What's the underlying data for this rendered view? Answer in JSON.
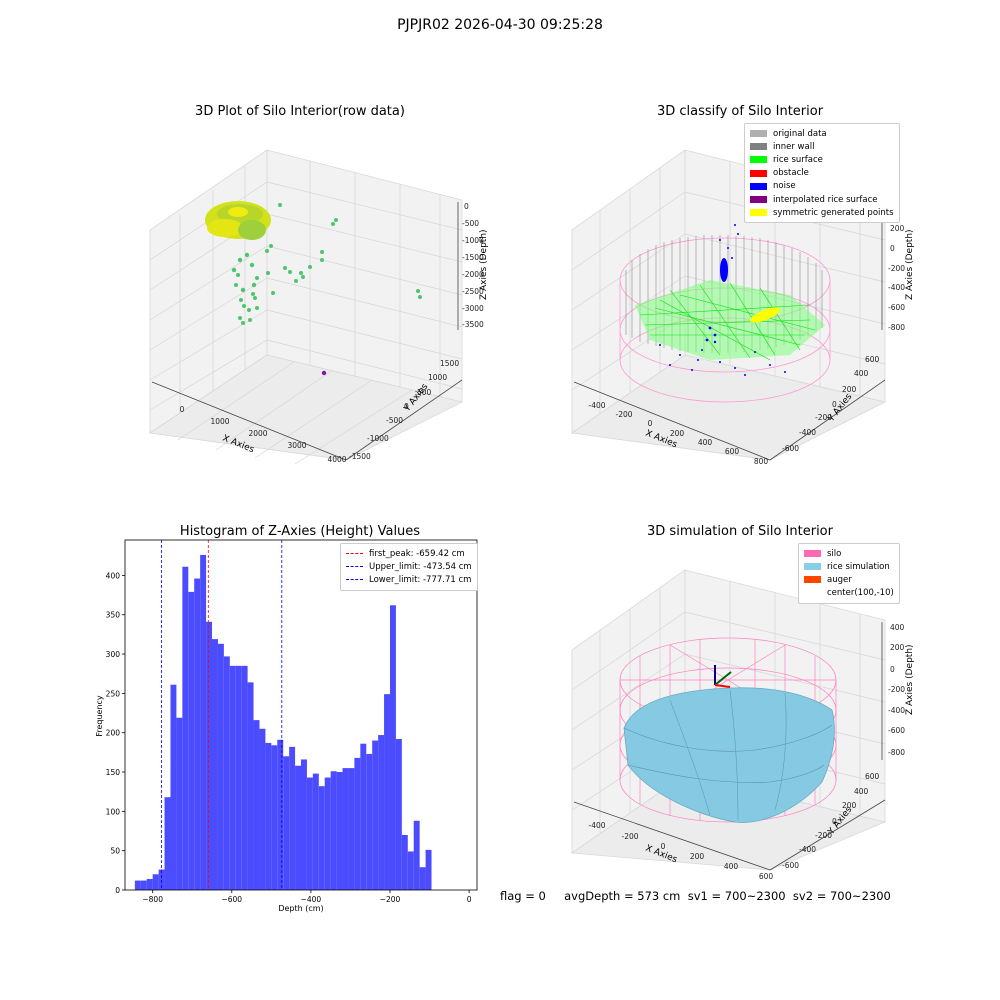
{
  "figure": {
    "suptitle": "PJPJR02 2026-04-30 09:25:28",
    "footer": "flag = 0     avgDepth = 573 cm  sv1 = 700~2300  sv2 = 700~2300"
  },
  "chart_data": [
    {
      "type": "scatter",
      "title": "3D Plot of Silo Interior(row data)",
      "xlabel": "X Axies",
      "ylabel": "Y Axies",
      "zlabel": "Z Axies (Depth)",
      "x_ticks": [
        "0",
        "1000",
        "2000",
        "3000",
        "4000"
      ],
      "y_ticks": [
        "-1500",
        "-1000",
        "-500",
        "0",
        "500",
        "1000",
        "1500"
      ],
      "z_ticks": [
        "0",
        "-500",
        "-1000",
        "-1500",
        "-2000",
        "-2500",
        "-3000",
        "-3500"
      ],
      "colors": {
        "cluster": "#c8e01e",
        "outliers": "#4cc66c",
        "far_point": "#7a1fa2"
      }
    },
    {
      "type": "scatter",
      "title": "3D classify of Silo Interior",
      "xlabel": "X Axies",
      "ylabel": "Y Axies",
      "zlabel": "Z Axies (Depth)",
      "x_ticks": [
        "-400",
        "-200",
        "0",
        "200",
        "400",
        "600",
        "800"
      ],
      "y_ticks": [
        "-600",
        "-400",
        "-200",
        "0",
        "200",
        "400",
        "600"
      ],
      "z_ticks": [
        "-800",
        "-600",
        "-400",
        "-200",
        "0",
        "200"
      ],
      "legend": [
        {
          "label": "original data",
          "color": "#b0b0b0"
        },
        {
          "label": "inner wall",
          "color": "#808080"
        },
        {
          "label": "rice surface",
          "color": "#00ff00"
        },
        {
          "label": "obstacle",
          "color": "#ff0000"
        },
        {
          "label": "noise",
          "color": "#0000ff"
        },
        {
          "label": "interpolated rice surface",
          "color": "#800080"
        },
        {
          "label": "symmetric generated points",
          "color": "#ffff00"
        }
      ]
    },
    {
      "type": "bar",
      "title": "Histogram of Z-Axies (Height) Values",
      "xlabel": "Depth (cm)",
      "ylabel": "Frequency",
      "xlim": [
        -870,
        20
      ],
      "ylim": [
        0,
        445
      ],
      "x_ticks": [
        -800,
        -600,
        -400,
        -200,
        0
      ],
      "y_ticks": [
        0,
        50,
        100,
        150,
        200,
        250,
        300,
        350,
        400
      ],
      "bar_color": "#4c4cff",
      "bins": [
        {
          "x0": -845,
          "x1": -830,
          "v": 12
        },
        {
          "x0": -830,
          "x1": -815,
          "v": 12
        },
        {
          "x0": -815,
          "x1": -800,
          "v": 14
        },
        {
          "x0": -800,
          "x1": -785,
          "v": 20
        },
        {
          "x0": -785,
          "x1": -770,
          "v": 26
        },
        {
          "x0": -770,
          "x1": -755,
          "v": 118
        },
        {
          "x0": -755,
          "x1": -740,
          "v": 261
        },
        {
          "x0": -740,
          "x1": -725,
          "v": 219
        },
        {
          "x0": -725,
          "x1": -710,
          "v": 411
        },
        {
          "x0": -710,
          "x1": -695,
          "v": 379
        },
        {
          "x0": -695,
          "x1": -680,
          "v": 396
        },
        {
          "x0": -680,
          "x1": -665,
          "v": 426
        },
        {
          "x0": -665,
          "x1": -650,
          "v": 341
        },
        {
          "x0": -650,
          "x1": -635,
          "v": 319
        },
        {
          "x0": -635,
          "x1": -620,
          "v": 313
        },
        {
          "x0": -620,
          "x1": -605,
          "v": 297
        },
        {
          "x0": -605,
          "x1": -590,
          "v": 285
        },
        {
          "x0": -590,
          "x1": -575,
          "v": 285
        },
        {
          "x0": -575,
          "x1": -560,
          "v": 285
        },
        {
          "x0": -560,
          "x1": -545,
          "v": 264
        },
        {
          "x0": -545,
          "x1": -530,
          "v": 216
        },
        {
          "x0": -530,
          "x1": -515,
          "v": 205
        },
        {
          "x0": -515,
          "x1": -500,
          "v": 187
        },
        {
          "x0": -500,
          "x1": -485,
          "v": 184
        },
        {
          "x0": -485,
          "x1": -470,
          "v": 191
        },
        {
          "x0": -470,
          "x1": -455,
          "v": 170
        },
        {
          "x0": -455,
          "x1": -440,
          "v": 182
        },
        {
          "x0": -440,
          "x1": -425,
          "v": 158
        },
        {
          "x0": -425,
          "x1": -410,
          "v": 166
        },
        {
          "x0": -410,
          "x1": -395,
          "v": 143
        },
        {
          "x0": -395,
          "x1": -380,
          "v": 148
        },
        {
          "x0": -380,
          "x1": -365,
          "v": 132
        },
        {
          "x0": -365,
          "x1": -350,
          "v": 143
        },
        {
          "x0": -350,
          "x1": -335,
          "v": 151
        },
        {
          "x0": -335,
          "x1": -320,
          "v": 150
        },
        {
          "x0": -320,
          "x1": -305,
          "v": 155
        },
        {
          "x0": -305,
          "x1": -290,
          "v": 155
        },
        {
          "x0": -290,
          "x1": -275,
          "v": 168
        },
        {
          "x0": -275,
          "x1": -260,
          "v": 186
        },
        {
          "x0": -260,
          "x1": -245,
          "v": 173
        },
        {
          "x0": -245,
          "x1": -230,
          "v": 190
        },
        {
          "x0": -230,
          "x1": -215,
          "v": 197
        },
        {
          "x0": -215,
          "x1": -200,
          "v": 249
        },
        {
          "x0": -200,
          "x1": -185,
          "v": 362
        },
        {
          "x0": -185,
          "x1": -170,
          "v": 192
        },
        {
          "x0": -170,
          "x1": -155,
          "v": 70
        },
        {
          "x0": -155,
          "x1": -140,
          "v": 49
        },
        {
          "x0": -140,
          "x1": -125,
          "v": 88
        },
        {
          "x0": -125,
          "x1": -110,
          "v": 29
        },
        {
          "x0": -110,
          "x1": -95,
          "v": 51
        }
      ],
      "vlines": [
        {
          "label": "first_peak: -659.42 cm",
          "x": -659.42,
          "color": "#ff0000"
        },
        {
          "label": "Upper_limit: -473.54 cm",
          "x": -473.54,
          "color": "#0000ff"
        },
        {
          "label": "Lower_limit: -777.71 cm",
          "x": -777.71,
          "color": "#0000ff"
        }
      ]
    },
    {
      "type": "area",
      "title": "3D simulation of Silo Interior",
      "xlabel": "X Axies",
      "ylabel": "Y Axies",
      "zlabel": "Z Axies (Depth)",
      "x_ticks": [
        "-400",
        "-200",
        "0",
        "200",
        "400",
        "600"
      ],
      "y_ticks": [
        "-600",
        "-400",
        "-200",
        "0",
        "200",
        "400",
        "600"
      ],
      "z_ticks": [
        "-800",
        "-600",
        "-400",
        "-200",
        "0",
        "200",
        "400"
      ],
      "legend": [
        {
          "label": "silo",
          "color": "#ff69b4"
        },
        {
          "label": "rice simulation",
          "color": "#87ceeb"
        },
        {
          "label": "auger",
          "color": "#ff4500"
        },
        {
          "label": "center(100,-10)",
          "color": ""
        }
      ]
    }
  ]
}
